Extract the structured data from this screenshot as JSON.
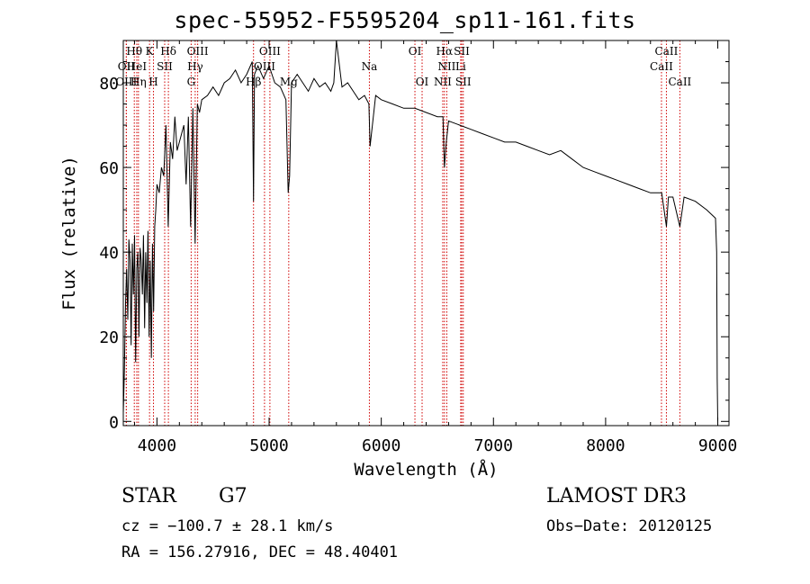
{
  "chart_data": {
    "type": "line",
    "title": "spec-55952-F5595204_sp11-161.fits",
    "xlabel": "Wavelength (Å)",
    "ylabel": "Flux (relative)",
    "xlim": [
      3700,
      9100
    ],
    "ylim": [
      -1,
      90
    ],
    "xticks": [
      4000,
      5000,
      6000,
      7000,
      8000,
      9000
    ],
    "yticks": [
      0,
      20,
      40,
      60,
      80
    ],
    "series": [
      {
        "name": "flux",
        "x": [
          3700,
          3710,
          3720,
          3730,
          3740,
          3750,
          3760,
          3770,
          3780,
          3790,
          3800,
          3810,
          3820,
          3830,
          3840,
          3850,
          3860,
          3870,
          3880,
          3890,
          3900,
          3910,
          3920,
          3930,
          3940,
          3950,
          3960,
          3970,
          3980,
          3990,
          4000,
          4020,
          4040,
          4060,
          4080,
          4100,
          4120,
          4140,
          4160,
          4180,
          4200,
          4220,
          4240,
          4260,
          4280,
          4300,
          4320,
          4340,
          4360,
          4380,
          4400,
          4450,
          4500,
          4550,
          4600,
          4650,
          4700,
          4750,
          4800,
          4850,
          4861,
          4870,
          4900,
          4950,
          5000,
          5050,
          5100,
          5150,
          5170,
          5183,
          5200,
          5250,
          5300,
          5350,
          5400,
          5450,
          5500,
          5550,
          5577,
          5600,
          5650,
          5700,
          5750,
          5800,
          5850,
          5890,
          5900,
          5950,
          6000,
          6100,
          6200,
          6300,
          6400,
          6500,
          6550,
          6563,
          6580,
          6600,
          6700,
          6800,
          6900,
          7000,
          7100,
          7200,
          7300,
          7400,
          7500,
          7600,
          7700,
          7800,
          7900,
          8000,
          8100,
          8200,
          8300,
          8400,
          8500,
          8542,
          8560,
          8600,
          8662,
          8700,
          8800,
          8900,
          8980,
          8990,
          8995,
          9000
        ],
        "y": [
          2,
          12,
          28,
          36,
          24,
          43,
          38,
          18,
          42,
          30,
          44,
          14,
          36,
          40,
          20,
          41,
          38,
          30,
          44,
          22,
          40,
          28,
          45,
          20,
          38,
          15,
          42,
          26,
          46,
          50,
          56,
          54,
          60,
          58,
          70,
          46,
          66,
          62,
          72,
          64,
          66,
          68,
          70,
          56,
          72,
          46,
          74,
          42,
          75,
          73,
          76,
          77,
          79,
          77,
          80,
          81,
          83,
          80,
          82,
          85,
          52,
          82,
          84,
          81,
          84,
          80,
          79,
          76,
          54,
          58,
          80,
          82,
          80,
          78,
          81,
          79,
          80,
          78,
          80,
          90,
          79,
          80,
          78,
          76,
          77,
          75,
          65,
          77,
          76,
          75,
          74,
          74,
          73,
          72,
          72,
          60,
          66,
          71,
          70,
          69,
          68,
          67,
          66,
          66,
          65,
          64,
          63,
          64,
          62,
          60,
          59,
          58,
          57,
          56,
          55,
          54,
          54,
          46,
          53,
          53,
          46,
          53,
          52,
          50,
          48,
          40,
          10,
          0
        ]
      }
    ],
    "line_markers": [
      {
        "label": "Hθ",
        "wl": 3798,
        "row": 1
      },
      {
        "label": "OII",
        "wl": 3727,
        "row": 2
      },
      {
        "label": "OIII",
        "wl": 3727,
        "row": 3
      },
      {
        "label": "K",
        "wl": 3934,
        "row": 1
      },
      {
        "label": "HeI",
        "wl": 3820,
        "row": 2
      },
      {
        "label": "Hη",
        "wl": 3835,
        "row": 3
      },
      {
        "label": "SII",
        "wl": 4069,
        "row": 2
      },
      {
        "label": "H",
        "wl": 3969,
        "row": 3
      },
      {
        "label": "Hδ",
        "wl": 4102,
        "row": 1
      },
      {
        "label": "OIII",
        "wl": 4363,
        "row": 1
      },
      {
        "label": "Hγ",
        "wl": 4341,
        "row": 2
      },
      {
        "label": "G",
        "wl": 4305,
        "row": 3
      },
      {
        "label": "Hβ",
        "wl": 4861,
        "row": 3
      },
      {
        "label": "OIII",
        "wl": 5007,
        "row": 1
      },
      {
        "label": "OIII",
        "wl": 4959,
        "row": 2
      },
      {
        "label": "Mg",
        "wl": 5175,
        "row": 3
      },
      {
        "label": "Na",
        "wl": 5894,
        "row": 2
      },
      {
        "label": "OI",
        "wl": 6300,
        "row": 1
      },
      {
        "label": "OI",
        "wl": 6364,
        "row": 3
      },
      {
        "label": "Hα",
        "wl": 6563,
        "row": 1
      },
      {
        "label": "NII",
        "wl": 6584,
        "row": 2
      },
      {
        "label": "NII",
        "wl": 6548,
        "row": 3
      },
      {
        "label": "SII",
        "wl": 6717,
        "row": 1
      },
      {
        "label": "Li",
        "wl": 6708,
        "row": 2
      },
      {
        "label": "SII",
        "wl": 6731,
        "row": 3
      },
      {
        "label": "CaII",
        "wl": 8542,
        "row": 1
      },
      {
        "label": "CaII",
        "wl": 8498,
        "row": 2
      },
      {
        "label": "CaII",
        "wl": 8662,
        "row": 3
      }
    ],
    "colors": {
      "line": "#000000",
      "marker": "#d00000",
      "axis": "#000000"
    }
  },
  "info": {
    "obj_class": "STAR",
    "subclass": "G7",
    "survey": "LAMOST DR3",
    "cz": "cz = −100.7 ± 28.1 km/s",
    "obs_date": "Obs−Date: 20120125",
    "radec": "RA = 156.27916, DEC =  48.40401"
  }
}
